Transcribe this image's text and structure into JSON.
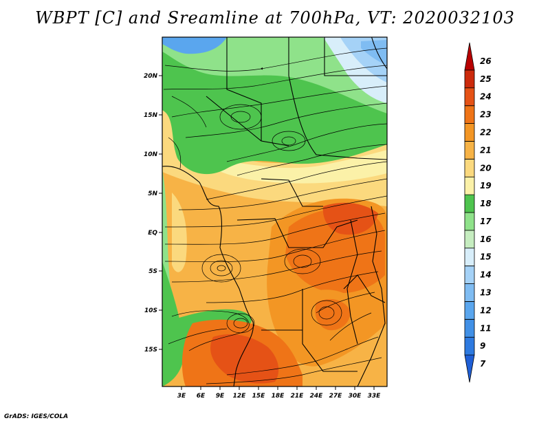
{
  "title": "WBPT [C] and Sreamline at 700hPa, VT: 2020032103",
  "footer": "GrADS: IGES/COLA",
  "map": {
    "lon_range": [
      0,
      35
    ],
    "lat_range": [
      -20,
      24
    ],
    "x_ticks": [
      "3E",
      "6E",
      "9E",
      "12E",
      "15E",
      "18E",
      "21E",
      "24E",
      "27E",
      "30E",
      "33E"
    ],
    "y_ticks": [
      "20N",
      "15N",
      "10N",
      "5N",
      "EQ",
      "5S",
      "10S",
      "15S"
    ]
  },
  "colorbar": {
    "labels": [
      "7",
      "9",
      "11",
      "12",
      "13",
      "14",
      "15",
      "16",
      "17",
      "18",
      "19",
      "20",
      "21",
      "22",
      "23",
      "24",
      "25",
      "26"
    ],
    "colors": [
      "#1f5fd6",
      "#2e7ae0",
      "#4190e6",
      "#5aa6ee",
      "#7fbcf2",
      "#a5d2f7",
      "#d8eefa",
      "#c6edc0",
      "#8fe28a",
      "#4ec44e",
      "#fbf1a8",
      "#fbd97e",
      "#f7b346",
      "#f39624",
      "#ef7417",
      "#e55216",
      "#cc2a0c",
      "#b80000"
    ]
  }
}
